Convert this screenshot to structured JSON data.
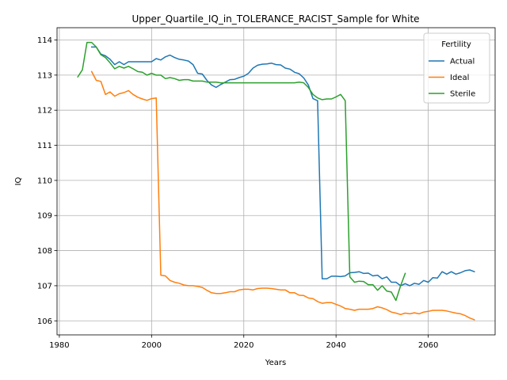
{
  "chart_data": {
    "type": "line",
    "title": "Upper_Quartile_IQ_in_TOLERANCE_RACIST_Sample for White",
    "xlabel": "Years",
    "ylabel": "IQ",
    "xlim": [
      1979.5,
      2074.5
    ],
    "ylim": [
      105.6,
      114.35
    ],
    "xticks": [
      1980,
      2000,
      2020,
      2040,
      2060
    ],
    "yticks": [
      106,
      107,
      108,
      109,
      110,
      111,
      112,
      113,
      114
    ],
    "grid": true,
    "legend": {
      "title": "Fertility",
      "position": "top-right"
    },
    "series": [
      {
        "name": "Actual",
        "color": "#1f77b4",
        "points": [
          [
            1987,
            113.8
          ],
          [
            1988,
            113.8
          ],
          [
            1989,
            113.6
          ],
          [
            1990,
            113.55
          ],
          [
            1991,
            113.45
          ],
          [
            1992,
            113.3
          ],
          [
            1993,
            113.38
          ],
          [
            1994,
            113.3
          ],
          [
            1995,
            113.38
          ],
          [
            1996,
            113.38
          ],
          [
            1997,
            113.38
          ],
          [
            1998,
            113.38
          ],
          [
            1999,
            113.38
          ],
          [
            2000,
            113.38
          ],
          [
            2001,
            113.47
          ],
          [
            2002,
            113.43
          ],
          [
            2003,
            113.52
          ],
          [
            2004,
            113.57
          ],
          [
            2005,
            113.5
          ],
          [
            2006,
            113.45
          ],
          [
            2007,
            113.43
          ],
          [
            2008,
            113.4
          ],
          [
            2009,
            113.3
          ],
          [
            2010,
            113.05
          ],
          [
            2011,
            113.03
          ],
          [
            2012,
            112.85
          ],
          [
            2013,
            112.72
          ],
          [
            2014,
            112.65
          ],
          [
            2015,
            112.73
          ],
          [
            2016,
            112.8
          ],
          [
            2017,
            112.87
          ],
          [
            2018,
            112.88
          ],
          [
            2019,
            112.93
          ],
          [
            2020,
            112.97
          ],
          [
            2021,
            113.05
          ],
          [
            2022,
            113.2
          ],
          [
            2023,
            113.28
          ],
          [
            2024,
            113.31
          ],
          [
            2025,
            113.32
          ],
          [
            2026,
            113.34
          ],
          [
            2027,
            113.3
          ],
          [
            2028,
            113.29
          ],
          [
            2029,
            113.2
          ],
          [
            2030,
            113.17
          ],
          [
            2031,
            113.08
          ],
          [
            2032,
            113.04
          ],
          [
            2033,
            112.92
          ],
          [
            2034,
            112.72
          ],
          [
            2035,
            112.33
          ],
          [
            2036,
            112.27
          ],
          [
            2037,
            107.2
          ],
          [
            2038,
            107.2
          ],
          [
            2039,
            107.27
          ],
          [
            2040,
            107.27
          ],
          [
            2041,
            107.26
          ],
          [
            2042,
            107.28
          ],
          [
            2043,
            107.37
          ],
          [
            2044,
            107.38
          ],
          [
            2045,
            107.4
          ],
          [
            2046,
            107.35
          ],
          [
            2047,
            107.36
          ],
          [
            2048,
            107.28
          ],
          [
            2049,
            107.3
          ],
          [
            2050,
            107.2
          ],
          [
            2051,
            107.25
          ],
          [
            2052,
            107.1
          ],
          [
            2053,
            107.1
          ],
          [
            2054,
            107.0
          ],
          [
            2055,
            107.06
          ],
          [
            2056,
            107.0
          ],
          [
            2057,
            107.07
          ],
          [
            2058,
            107.04
          ],
          [
            2059,
            107.15
          ],
          [
            2060,
            107.1
          ],
          [
            2061,
            107.23
          ],
          [
            2062,
            107.22
          ],
          [
            2063,
            107.4
          ],
          [
            2064,
            107.33
          ],
          [
            2065,
            107.4
          ],
          [
            2066,
            107.33
          ],
          [
            2067,
            107.37
          ],
          [
            2068,
            107.43
          ],
          [
            2069,
            107.45
          ],
          [
            2070,
            107.4
          ]
        ]
      },
      {
        "name": "Ideal",
        "color": "#ff7f0e",
        "points": [
          [
            1987,
            113.1
          ],
          [
            1988,
            112.85
          ],
          [
            1989,
            112.82
          ],
          [
            1990,
            112.45
          ],
          [
            1991,
            112.52
          ],
          [
            1992,
            112.4
          ],
          [
            1993,
            112.47
          ],
          [
            1994,
            112.5
          ],
          [
            1995,
            112.56
          ],
          [
            1996,
            112.45
          ],
          [
            1997,
            112.37
          ],
          [
            1998,
            112.32
          ],
          [
            1999,
            112.28
          ],
          [
            2000,
            112.33
          ],
          [
            2001,
            112.35
          ],
          [
            2002,
            107.3
          ],
          [
            2003,
            107.28
          ],
          [
            2004,
            107.15
          ],
          [
            2005,
            107.1
          ],
          [
            2006,
            107.07
          ],
          [
            2007,
            107.02
          ],
          [
            2008,
            107.0
          ],
          [
            2009,
            107.0
          ],
          [
            2010,
            106.98
          ],
          [
            2011,
            106.95
          ],
          [
            2012,
            106.87
          ],
          [
            2013,
            106.8
          ],
          [
            2014,
            106.78
          ],
          [
            2015,
            106.78
          ],
          [
            2016,
            106.8
          ],
          [
            2017,
            106.83
          ],
          [
            2018,
            106.83
          ],
          [
            2019,
            106.88
          ],
          [
            2020,
            106.9
          ],
          [
            2021,
            106.9
          ],
          [
            2022,
            106.88
          ],
          [
            2023,
            106.92
          ],
          [
            2024,
            106.93
          ],
          [
            2025,
            106.93
          ],
          [
            2026,
            106.92
          ],
          [
            2027,
            106.9
          ],
          [
            2028,
            106.88
          ],
          [
            2029,
            106.88
          ],
          [
            2030,
            106.8
          ],
          [
            2031,
            106.8
          ],
          [
            2032,
            106.73
          ],
          [
            2033,
            106.72
          ],
          [
            2034,
            106.65
          ],
          [
            2035,
            106.63
          ],
          [
            2036,
            106.55
          ],
          [
            2037,
            106.5
          ],
          [
            2038,
            106.52
          ],
          [
            2039,
            106.52
          ],
          [
            2040,
            106.47
          ],
          [
            2041,
            106.42
          ],
          [
            2042,
            106.35
          ],
          [
            2043,
            106.33
          ],
          [
            2044,
            106.3
          ],
          [
            2045,
            106.33
          ],
          [
            2046,
            106.33
          ],
          [
            2047,
            106.33
          ],
          [
            2048,
            106.35
          ],
          [
            2049,
            106.4
          ],
          [
            2050,
            106.37
          ],
          [
            2051,
            106.32
          ],
          [
            2052,
            106.25
          ],
          [
            2053,
            106.22
          ],
          [
            2054,
            106.18
          ],
          [
            2055,
            106.22
          ],
          [
            2056,
            106.2
          ],
          [
            2057,
            106.23
          ],
          [
            2058,
            106.2
          ],
          [
            2059,
            106.25
          ],
          [
            2060,
            106.27
          ],
          [
            2061,
            106.3
          ],
          [
            2062,
            106.3
          ],
          [
            2063,
            106.3
          ],
          [
            2064,
            106.28
          ],
          [
            2065,
            106.25
          ],
          [
            2066,
            106.22
          ],
          [
            2067,
            106.2
          ],
          [
            2068,
            106.15
          ],
          [
            2069,
            106.08
          ],
          [
            2070,
            106.03
          ]
        ]
      },
      {
        "name": "Sterile",
        "color": "#2ca02c",
        "points": [
          [
            1984,
            112.95
          ],
          [
            1985,
            113.15
          ],
          [
            1986,
            113.93
          ],
          [
            1987,
            113.93
          ],
          [
            1988,
            113.8
          ],
          [
            1989,
            113.58
          ],
          [
            1990,
            113.5
          ],
          [
            1991,
            113.35
          ],
          [
            1992,
            113.18
          ],
          [
            1993,
            113.25
          ],
          [
            1994,
            113.2
          ],
          [
            1995,
            113.25
          ],
          [
            1996,
            113.18
          ],
          [
            1997,
            113.1
          ],
          [
            1998,
            113.08
          ],
          [
            1999,
            113.0
          ],
          [
            2000,
            113.05
          ],
          [
            2001,
            113.0
          ],
          [
            2002,
            113.0
          ],
          [
            2003,
            112.9
          ],
          [
            2004,
            112.93
          ],
          [
            2005,
            112.9
          ],
          [
            2006,
            112.85
          ],
          [
            2007,
            112.87
          ],
          [
            2008,
            112.87
          ],
          [
            2009,
            112.83
          ],
          [
            2010,
            112.83
          ],
          [
            2011,
            112.83
          ],
          [
            2012,
            112.8
          ],
          [
            2013,
            112.8
          ],
          [
            2014,
            112.8
          ],
          [
            2015,
            112.78
          ],
          [
            2016,
            112.78
          ],
          [
            2017,
            112.78
          ],
          [
            2018,
            112.78
          ],
          [
            2019,
            112.78
          ],
          [
            2020,
            112.78
          ],
          [
            2021,
            112.78
          ],
          [
            2022,
            112.78
          ],
          [
            2023,
            112.78
          ],
          [
            2024,
            112.78
          ],
          [
            2025,
            112.78
          ],
          [
            2026,
            112.78
          ],
          [
            2027,
            112.78
          ],
          [
            2028,
            112.78
          ],
          [
            2029,
            112.78
          ],
          [
            2030,
            112.78
          ],
          [
            2031,
            112.78
          ],
          [
            2032,
            112.8
          ],
          [
            2033,
            112.78
          ],
          [
            2034,
            112.65
          ],
          [
            2035,
            112.45
          ],
          [
            2036,
            112.35
          ],
          [
            2037,
            112.3
          ],
          [
            2038,
            112.32
          ],
          [
            2039,
            112.32
          ],
          [
            2040,
            112.38
          ],
          [
            2041,
            112.45
          ],
          [
            2042,
            112.27
          ],
          [
            2043,
            107.25
          ],
          [
            2044,
            107.1
          ],
          [
            2045,
            107.13
          ],
          [
            2046,
            107.12
          ],
          [
            2047,
            107.03
          ],
          [
            2048,
            107.03
          ],
          [
            2049,
            106.87
          ],
          [
            2050,
            107.0
          ],
          [
            2051,
            106.85
          ],
          [
            2052,
            106.82
          ],
          [
            2053,
            106.58
          ],
          [
            2054,
            107.0
          ],
          [
            2055,
            107.35
          ]
        ]
      }
    ]
  }
}
